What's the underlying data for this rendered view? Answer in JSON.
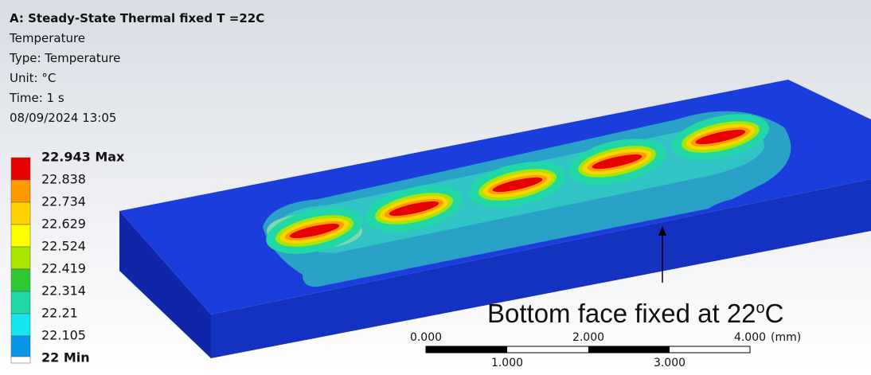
{
  "header": {
    "title": "A: Steady-State Thermal fixed T =22C",
    "lines": [
      "Temperature",
      "Type: Temperature",
      "Unit: °C",
      "Time: 1 s",
      "08/09/2024 13:05"
    ]
  },
  "legend": {
    "levels": [
      {
        "label": "22.943 Max",
        "color": "#e60000"
      },
      {
        "label": "22.838",
        "color": "#ff9a00"
      },
      {
        "label": "22.734",
        "color": "#ffd200"
      },
      {
        "label": "22.629",
        "color": "#ffff00"
      },
      {
        "label": "22.524",
        "color": "#a8e600"
      },
      {
        "label": "22.419",
        "color": "#2ec832"
      },
      {
        "label": "22.314",
        "color": "#21d7a5"
      },
      {
        "label": "22.21",
        "color": "#16e6f0"
      },
      {
        "label": "22.105",
        "color": "#0a96e6"
      },
      {
        "label": "22 Min",
        "color": "#0000d2"
      }
    ]
  },
  "annotation": {
    "text": "Bottom face fixed at 22",
    "superscript": "o",
    "unit": "C"
  },
  "scale_bar": {
    "top_labels": [
      "0.000",
      "2.000",
      "4.000"
    ],
    "unit": "(mm)",
    "bottom_labels": [
      "1.000",
      "3.000"
    ]
  }
}
